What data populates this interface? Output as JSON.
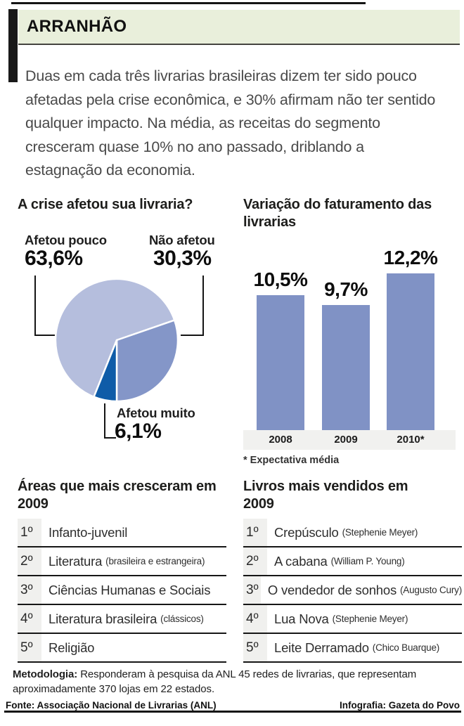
{
  "header": {
    "kicker": "ARRANHÃO",
    "intro": "Duas em cada três livrarias brasileiras dizem ter sido pouco afetadas pela crise econômica, e 30% afirmam não ter sentido qualquer impacto. Na média, as receitas do segmento cresceram quase 10% no ano passado, driblando a estagnação da economia."
  },
  "chart_data": [
    {
      "type": "pie",
      "title": "A crise afetou sua livraria?",
      "labels": [
        "Afetou pouco",
        "Não afetou",
        "Afetou muito"
      ],
      "values": [
        63.6,
        30.3,
        6.1
      ],
      "value_labels": [
        "63,6%",
        "30,3%",
        "6,1%"
      ],
      "colors": [
        "#b5bedd",
        "#8496c8",
        "#0f5ca8"
      ],
      "legend_position": "callout-labels"
    },
    {
      "type": "bar",
      "title": "Variação do faturamento das livrarias",
      "categories": [
        "2008",
        "2009",
        "2010*"
      ],
      "values": [
        10.5,
        9.7,
        12.2
      ],
      "value_labels": [
        "10,5%",
        "9,7%",
        "12,2%"
      ],
      "footnote": "* Expectativa média",
      "bar_color": "#8092c5",
      "xlabel": "",
      "ylabel": "",
      "ylim": [
        0,
        13
      ],
      "grid": false
    }
  ],
  "lists": {
    "areas": {
      "title": "Áreas que mais cresceram em 2009",
      "items": [
        {
          "rank": "1º",
          "label": "Infanto-juvenil",
          "detail": ""
        },
        {
          "rank": "2º",
          "label": "Literatura",
          "detail": "(brasileira e estrangeira)"
        },
        {
          "rank": "3º",
          "label": "Ciências Humanas e Sociais",
          "detail": ""
        },
        {
          "rank": "4º",
          "label": "Literatura brasileira",
          "detail": "(clássicos)"
        },
        {
          "rank": "5º",
          "label": "Religião",
          "detail": ""
        }
      ]
    },
    "livros": {
      "title": "Livros mais vendidos em 2009",
      "items": [
        {
          "rank": "1º",
          "label": "Crepúsculo",
          "detail": "(Stephenie Meyer)"
        },
        {
          "rank": "2º",
          "label": "A cabana",
          "detail": "(William P. Young)"
        },
        {
          "rank": "3º",
          "label": "O vendedor de sonhos",
          "detail": "(Augusto Cury)"
        },
        {
          "rank": "4º",
          "label": "Lua Nova",
          "detail": "(Stephenie Meyer)"
        },
        {
          "rank": "5º",
          "label": "Leite Derramado",
          "detail": "(Chico Buarque)"
        }
      ]
    }
  },
  "methodology": {
    "label": "Metodologia:",
    "text": " Responderam à pesquisa da ANL 45 redes de livrarias, que representam aproximadamente 370 lojas em 22 estados."
  },
  "footer": {
    "source": "Fonte: Associação Nacional de Livrarias (ANL)",
    "credit": "Infografia: Gazeta do Povo"
  },
  "colors": {
    "header_green": "#e9efdb",
    "pie_light": "#b5bedd",
    "pie_medium": "#8496c8",
    "pie_dark": "#0f5ca8",
    "bar_blue": "#8092c5",
    "band_gray": "#f1f1ef",
    "rank_gray": "#f0f0ee"
  }
}
